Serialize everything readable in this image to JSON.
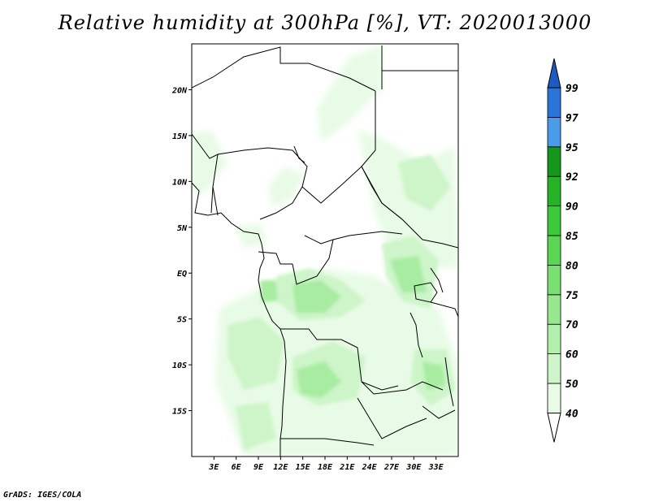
{
  "title": "Relative humidity at 300hPa [%], VT: 2020013000",
  "footer": "GrADS: IGES/COLA",
  "map": {
    "lon_range": [
      0,
      36
    ],
    "lat_range": [
      -20,
      25
    ],
    "x_ticks": [
      {
        "value": 3,
        "label": "3E"
      },
      {
        "value": 6,
        "label": "6E"
      },
      {
        "value": 9,
        "label": "9E"
      },
      {
        "value": 12,
        "label": "12E"
      },
      {
        "value": 15,
        "label": "15E"
      },
      {
        "value": 18,
        "label": "18E"
      },
      {
        "value": 21,
        "label": "21E"
      },
      {
        "value": 24,
        "label": "24E"
      },
      {
        "value": 27,
        "label": "27E"
      },
      {
        "value": 30,
        "label": "30E"
      },
      {
        "value": 33,
        "label": "33E"
      }
    ],
    "y_ticks": [
      {
        "value": 20,
        "label": "20N"
      },
      {
        "value": 15,
        "label": "15N"
      },
      {
        "value": 10,
        "label": "10N"
      },
      {
        "value": 5,
        "label": "5N"
      },
      {
        "value": 0,
        "label": "EQ"
      },
      {
        "value": -5,
        "label": "5S"
      },
      {
        "value": -10,
        "label": "10S"
      },
      {
        "value": -15,
        "label": "15S"
      }
    ]
  },
  "colorbar": {
    "levels": [
      "40",
      "50",
      "60",
      "70",
      "75",
      "80",
      "85",
      "90",
      "92",
      "95",
      "97",
      "99"
    ],
    "colors": [
      "#ffffff",
      "#e8fbe6",
      "#cdf5c9",
      "#b2efad",
      "#96e88f",
      "#78e071",
      "#5ad653",
      "#3dc93a",
      "#27b326",
      "#14971a",
      "#4a9be8",
      "#2a73d8",
      "#1c5cc0"
    ]
  },
  "colors": {
    "lightest": "#e8fbe6",
    "light": "#cdf5c9",
    "medium": "#a7eca1",
    "strong": "#7fdd78"
  }
}
